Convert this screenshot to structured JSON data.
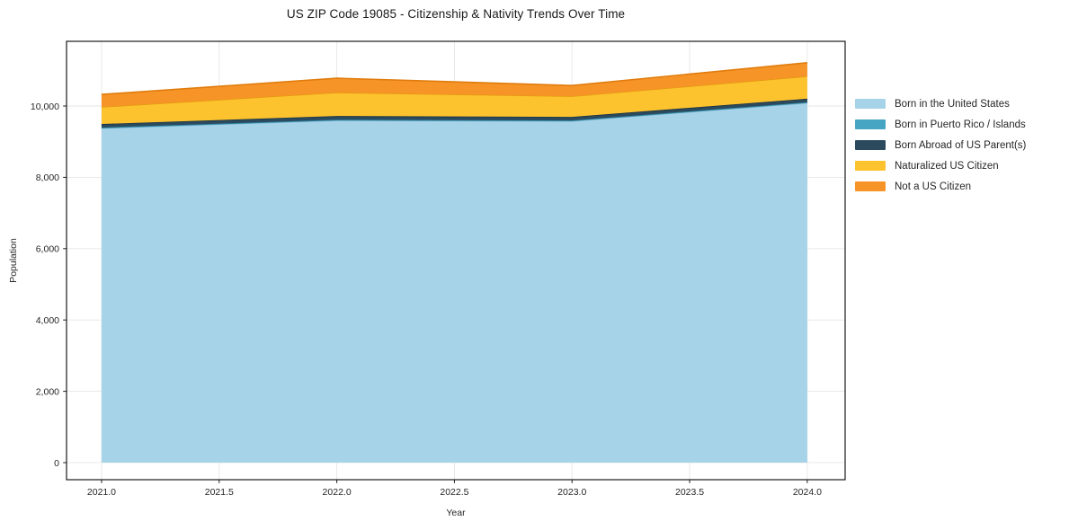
{
  "chart_data": {
    "type": "area",
    "stacked": true,
    "title": "US ZIP Code 19085 - Citizenship & Nativity Trends Over Time",
    "xlabel": "Year",
    "ylabel": "Population",
    "x": [
      2021,
      2022,
      2023,
      2024
    ],
    "series": [
      {
        "name": "Born in the United States",
        "color": "#a6d3e8",
        "edge_color": "#79b4d2",
        "values": [
          9380,
          9600,
          9580,
          10090
        ]
      },
      {
        "name": "Born in Puerto Rico / Islands",
        "color": "#45a5c2",
        "edge_color": "#2f8aa6",
        "values": [
          15,
          15,
          15,
          15
        ]
      },
      {
        "name": "Born Abroad of US Parent(s)",
        "color": "#2b4a5e",
        "edge_color": "#1c3444",
        "values": [
          100,
          105,
          100,
          100
        ]
      },
      {
        "name": "Naturalized US Citizen",
        "color": "#fdc32e",
        "edge_color": "#e59a12",
        "values": [
          480,
          660,
          580,
          630
        ]
      },
      {
        "name": "Not a US Citizen",
        "color": "#f79428",
        "edge_color": "#e07c0d",
        "values": [
          350,
          400,
          300,
          380
        ]
      }
    ],
    "x_ticks": {
      "values": [
        2021,
        2021.5,
        2022,
        2022.5,
        2023,
        2023.5,
        2024
      ],
      "labels": [
        "2021.0",
        "2021.5",
        "2022.0",
        "2022.5",
        "2023.0",
        "2023.5",
        "2024.0"
      ]
    },
    "y_ticks": {
      "values": [
        0,
        2000,
        4000,
        6000,
        8000,
        10000
      ],
      "labels": [
        "0",
        "2,000",
        "4,000",
        "6,000",
        "8,000",
        "10,000"
      ]
    },
    "xlim": [
      2020.851,
      2024.161
    ],
    "ylim": [
      -479,
      11814
    ],
    "grid": true,
    "legend_position": "right",
    "style_colors": {
      "grid": "#e6e6e6",
      "spine": "#1a1a1a",
      "tick_text": "#262626",
      "background": "#ffffff"
    }
  }
}
